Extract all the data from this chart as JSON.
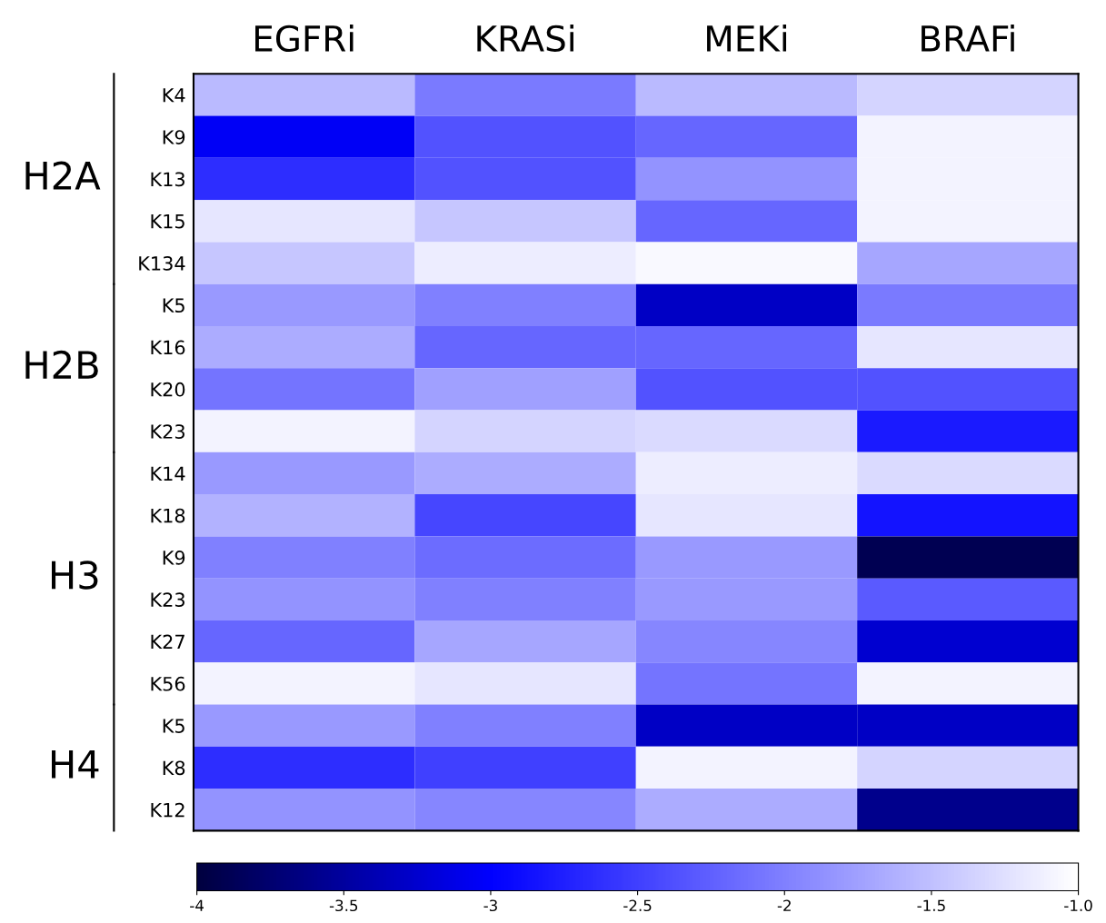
{
  "chart_data": {
    "type": "heatmap",
    "categories": [
      "EGFRi",
      "KRASi",
      "MEKi",
      "BRAFi"
    ],
    "y_categories": [
      "K4",
      "K9",
      "K13",
      "K15",
      "K134",
      "K5",
      "K16",
      "K20",
      "K23",
      "K14",
      "K18",
      "K9",
      "K23",
      "K27",
      "K56",
      "K5",
      "K8",
      "K12"
    ],
    "cells": [
      [
        -1.55,
        -2.05,
        -1.55,
        -1.35
      ],
      [
        -3.05,
        -2.35,
        -2.2,
        -1.1
      ],
      [
        -2.65,
        -2.35,
        -1.85,
        -1.1
      ],
      [
        -1.2,
        -1.45,
        -2.2,
        -1.1
      ],
      [
        -1.45,
        -1.15,
        -1.05,
        -1.7
      ],
      [
        -1.8,
        -2.0,
        -3.3,
        -2.05
      ],
      [
        -1.65,
        -2.2,
        -2.2,
        -1.2
      ],
      [
        -2.1,
        -1.75,
        -2.35,
        -2.35
      ],
      [
        -1.1,
        -1.35,
        -1.3,
        -2.8
      ],
      [
        -1.8,
        -1.65,
        -1.15,
        -1.3
      ],
      [
        -1.6,
        -2.45,
        -1.2,
        -2.85
      ],
      [
        -2.0,
        -2.15,
        -1.8,
        -3.9
      ],
      [
        -1.85,
        -2.0,
        -1.8,
        -2.3
      ],
      [
        -2.2,
        -1.7,
        -1.95,
        -3.25
      ],
      [
        -1.1,
        -1.2,
        -2.1,
        -1.1
      ],
      [
        -1.8,
        -2.0,
        -3.3,
        -3.3
      ],
      [
        -2.65,
        -2.5,
        -1.1,
        -1.35
      ],
      [
        -1.85,
        -1.95,
        -1.65,
        -3.6
      ]
    ],
    "clim": [
      -4,
      -1
    ],
    "cticks": [
      -4,
      -3.5,
      -3,
      -2.5,
      -2,
      -1.5,
      {
        "value": -1,
        "label": "-1.0"
      }
    ],
    "annotations": [
      "H2A",
      "H2B",
      "H3",
      "H4"
    ]
  }
}
